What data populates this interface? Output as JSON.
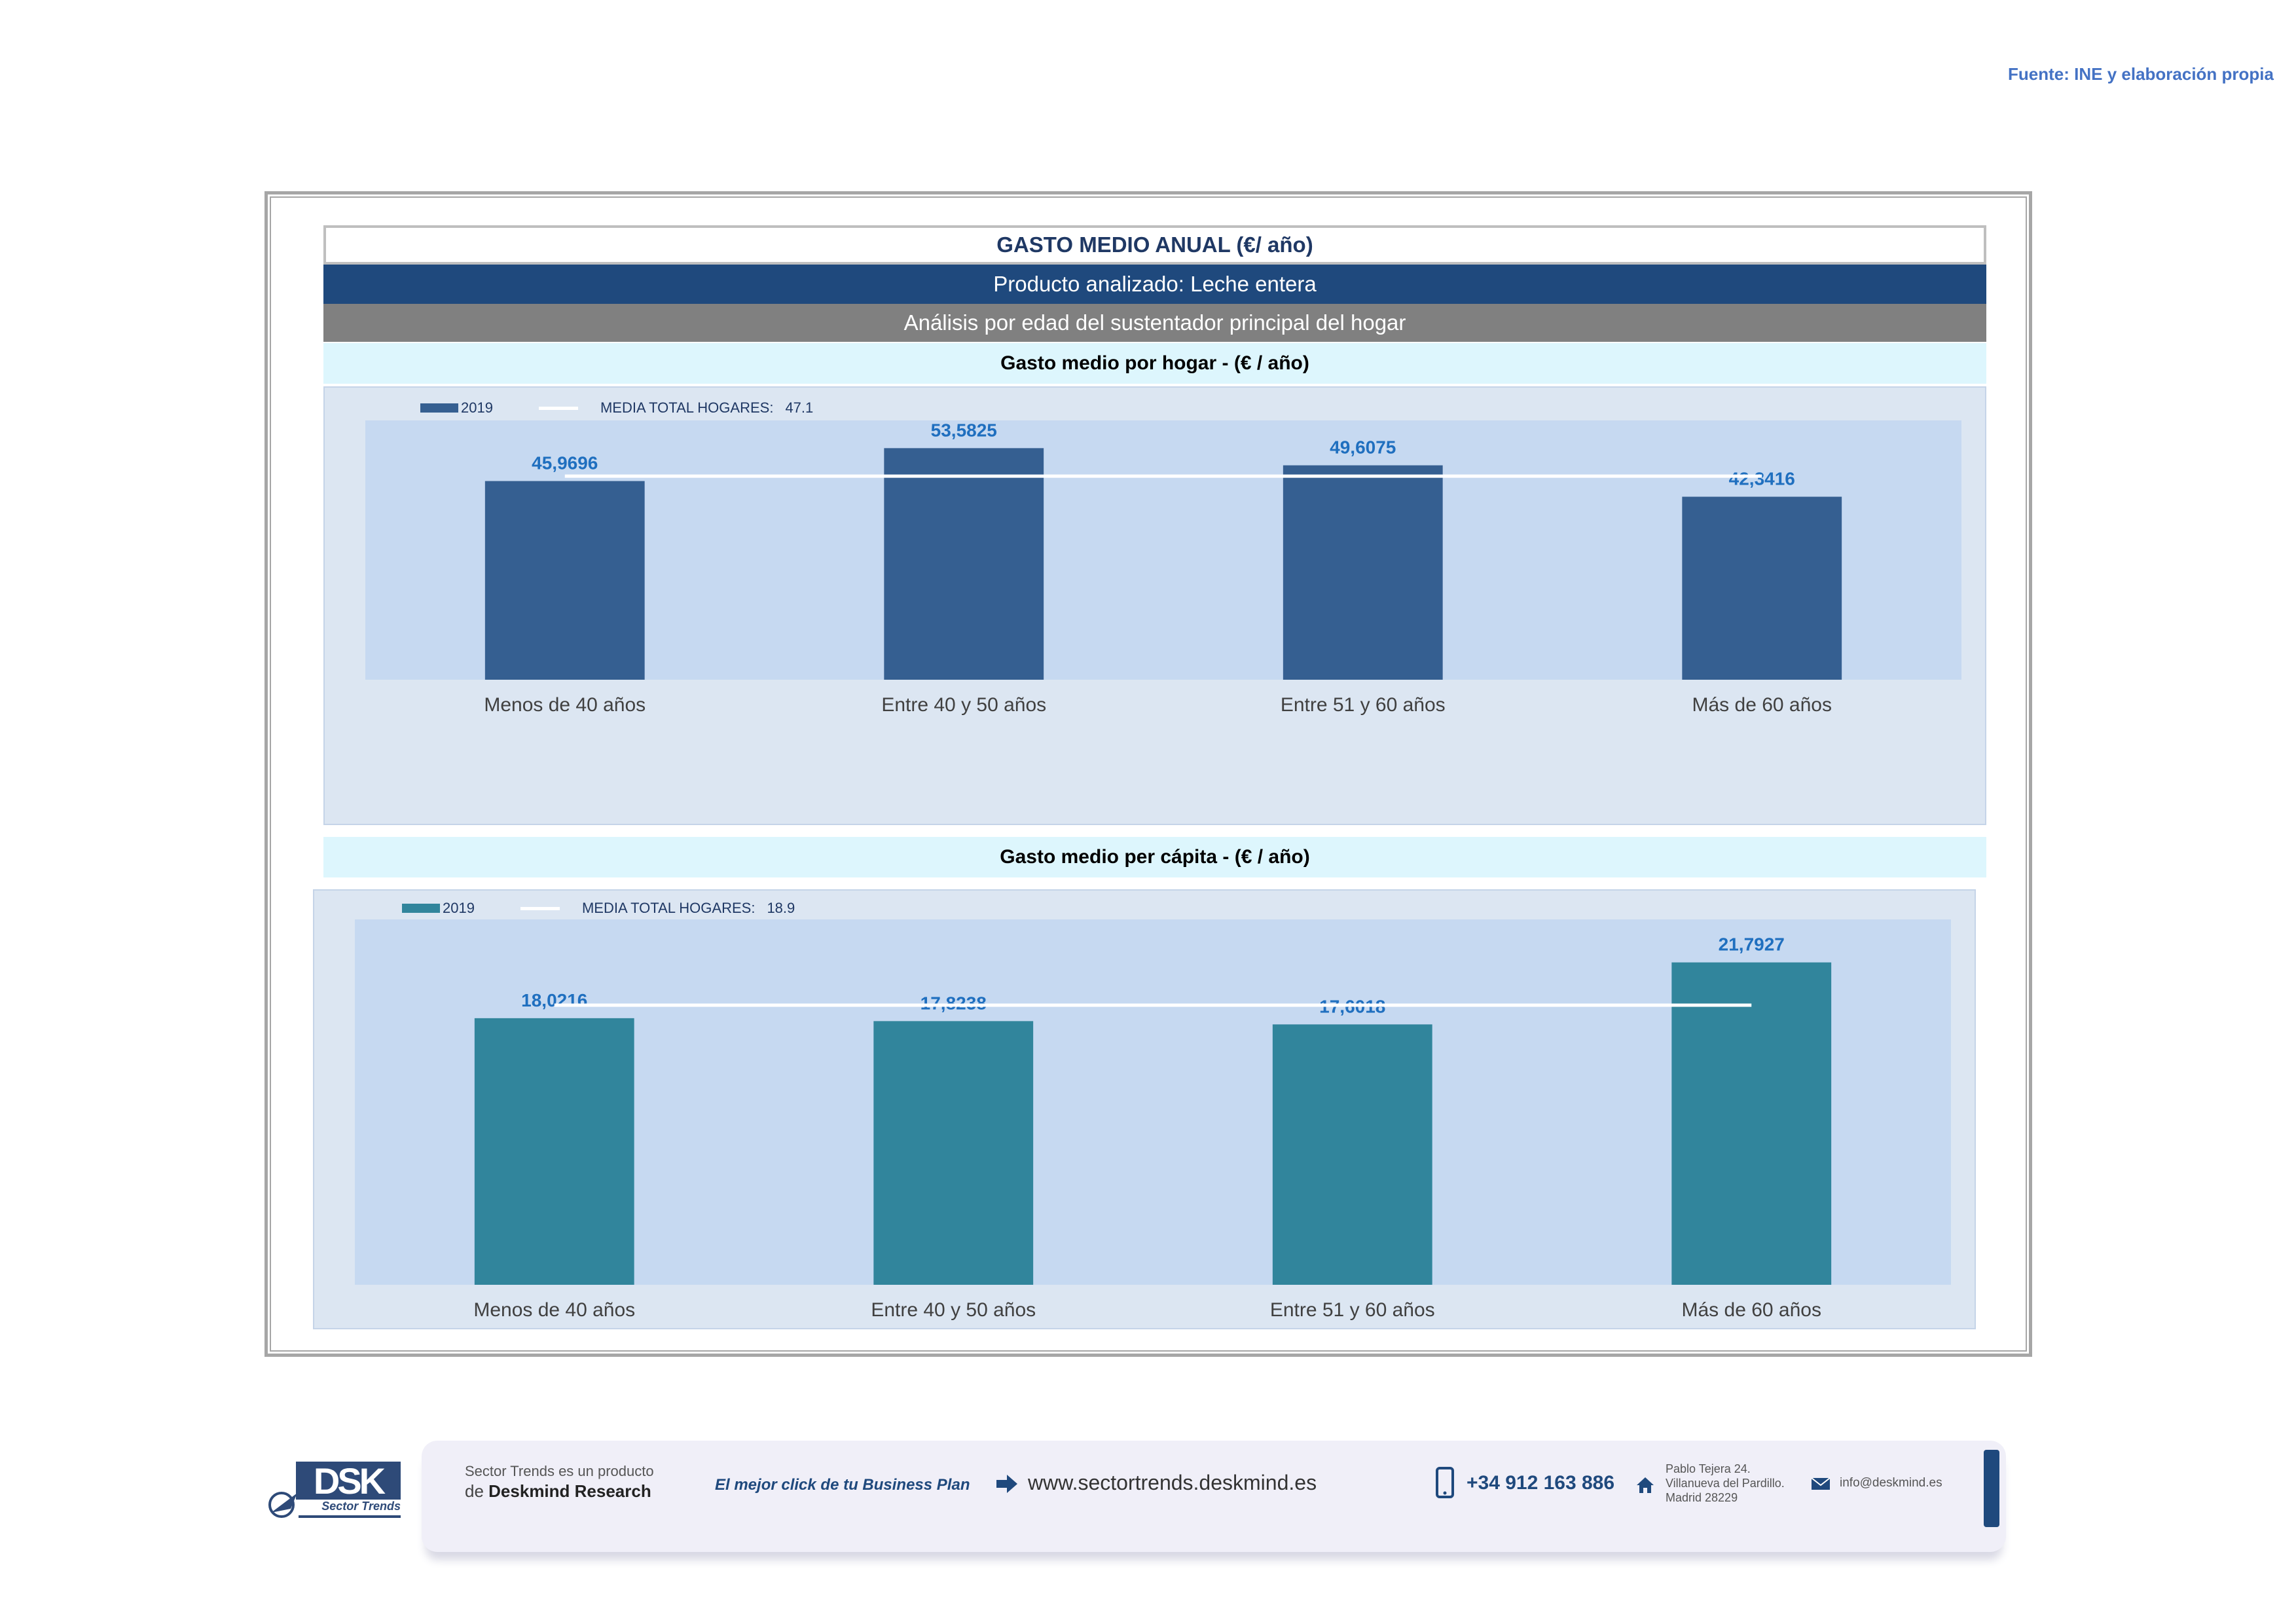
{
  "source_note": "Fuente: INE y elaboración propia",
  "header": {
    "title": "GASTO MEDIO ANUAL (€/ año)",
    "product": "Producto analizado: Leche entera",
    "analysis": "Análisis por edad del sustentador principal del hogar"
  },
  "charts": {
    "household": {
      "subtitle": "Gasto medio por hogar -  (€ / año)",
      "legend_series": "2019",
      "legend_mean_label": "MEDIA TOTAL  HOGARES:",
      "legend_mean_value": "47.1"
    },
    "percapita": {
      "subtitle": "Gasto medio per cápita -  (€ / año)",
      "legend_series": "2019",
      "legend_mean_label": "MEDIA TOTAL  HOGARES:",
      "legend_mean_value": "18.9"
    }
  },
  "chart_data": [
    {
      "type": "bar",
      "title": "Gasto medio por hogar -  (€ / año)",
      "categories": [
        "Menos de 40 años",
        "Entre 40 y 50 años",
        "Entre 51  y 60 años",
        "Más de 60 años"
      ],
      "series": [
        {
          "name": "2019",
          "values": [
            45.9696,
            53.5825,
            49.6075,
            42.3416
          ],
          "labels": [
            "45,9696",
            "53,5825",
            "49,6075",
            "42,3416"
          ],
          "color": "#355f91"
        }
      ],
      "reference_line": {
        "name": "MEDIA TOTAL  HOGARES:",
        "value": 47.1,
        "color": "#ffffff"
      },
      "ylim": [
        0,
        60
      ],
      "legend": "top-left",
      "grid": false
    },
    {
      "type": "bar",
      "title": "Gasto medio per cápita -  (€ / año)",
      "categories": [
        "Menos de 40 años",
        "Entre 40 y 50 años",
        "Entre 51  y 60 años",
        "Más de 60 años"
      ],
      "series": [
        {
          "name": "2019",
          "values": [
            18.0216,
            17.8238,
            17.6018,
            21.7927
          ],
          "labels": [
            "18,0216",
            "17,8238",
            "17,6018",
            "21,7927"
          ],
          "color": "#31859c"
        }
      ],
      "reference_line": {
        "name": "MEDIA TOTAL  HOGARES:",
        "value": 18.9,
        "color": "#ffffff"
      },
      "ylim": [
        0,
        24.7
      ],
      "legend": "top-left",
      "grid": false
    }
  ],
  "footer": {
    "logo_text": "DSK",
    "logo_subtitle": "Sector Trends",
    "product_line1": "Sector Trends es un producto",
    "product_line2_prefix": "de",
    "product_line2_brand": "Deskmind Research",
    "tagline": "El mejor click de tu Business Plan",
    "website": "www.sectortrends.deskmind.es",
    "phone": "+34 912 163 886",
    "address_line1": "Pablo Tejera 24.",
    "address_line2": "Villanueva del Pardillo.",
    "address_line3": "Madrid 28229",
    "email": "info@deskmind.es",
    "icons": [
      "arrow-icon",
      "phone-icon",
      "home-icon",
      "mail-icon"
    ]
  }
}
